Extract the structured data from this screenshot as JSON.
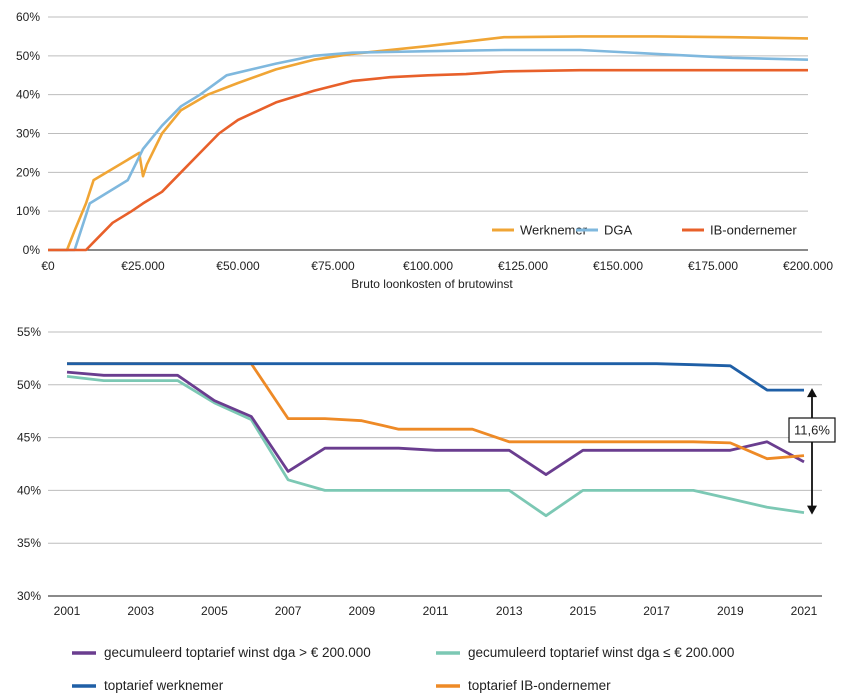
{
  "chart_data": [
    {
      "type": "line",
      "xlabel": "Bruto loonkosten of brutowinst",
      "x_ticks": [
        "€0",
        "€25.000",
        "€50.000",
        "€75.000",
        "€100.000",
        "€125.000",
        "€150.000",
        "€175.000",
        "€200.000"
      ],
      "y_ticks": [
        "0%",
        "10%",
        "20%",
        "30%",
        "40%",
        "50%",
        "60%"
      ],
      "xlim": [
        0,
        200000
      ],
      "ylim": [
        0,
        60
      ],
      "grid": "horizontal",
      "legend": "bottom-right",
      "series": [
        {
          "name": "Werknemer",
          "color": "#f0a535",
          "x": [
            0,
            5000,
            7000,
            10000,
            12000,
            24000,
            25000,
            26000,
            30000,
            35000,
            42000,
            50000,
            60000,
            70000,
            80000,
            100000,
            120000,
            140000,
            160000,
            180000,
            200000
          ],
          "y": [
            0,
            0,
            5,
            12,
            18,
            25,
            19,
            22,
            30,
            36,
            40,
            43,
            46.5,
            49,
            50.5,
            52.5,
            54.8,
            55,
            55,
            54.8,
            54.5
          ]
        },
        {
          "name": "DGA",
          "color": "#7fb8de",
          "x": [
            0,
            7000,
            9000,
            11000,
            21000,
            25000,
            30000,
            35000,
            40000,
            47000,
            60000,
            70000,
            80000,
            100000,
            120000,
            140000,
            160000,
            180000,
            200000
          ],
          "y": [
            0,
            0,
            6,
            12,
            18,
            26,
            32,
            37,
            40,
            45,
            48,
            50,
            50.8,
            51.2,
            51.5,
            51.5,
            50.5,
            49.5,
            49
          ]
        },
        {
          "name": "IB-ondernemer",
          "color": "#e8602a",
          "x": [
            0,
            10000,
            13000,
            17000,
            22000,
            25000,
            30000,
            35000,
            40000,
            45000,
            50000,
            60000,
            70000,
            80000,
            90000,
            100000,
            110000,
            120000,
            140000,
            160000,
            180000,
            200000
          ],
          "y": [
            0,
            0,
            3,
            7,
            10,
            12,
            15,
            20,
            25,
            30,
            33.5,
            38,
            41,
            43.5,
            44.5,
            45,
            45.3,
            46,
            46.3,
            46.3,
            46.3,
            46.3
          ]
        }
      ]
    },
    {
      "type": "line",
      "x_ticks": [
        "2001",
        "2003",
        "2005",
        "2007",
        "2009",
        "2011",
        "2013",
        "2015",
        "2017",
        "2019",
        "2021"
      ],
      "y_ticks": [
        "30%",
        "35%",
        "40%",
        "45%",
        "50%",
        "55%"
      ],
      "xlim": [
        2001,
        2021
      ],
      "ylim": [
        30,
        55
      ],
      "grid": "horizontal",
      "legend": "bottom",
      "annotation": {
        "label": "11,6%",
        "x": 2021,
        "from": 49.5,
        "to": 37.9
      },
      "series": [
        {
          "name": "gecumuleerd toptarief winst dga > € 200.000",
          "color": "#6a3d8f",
          "x": [
            2001,
            2002,
            2003,
            2004,
            2005,
            2006,
            2007,
            2008,
            2009,
            2010,
            2011,
            2012,
            2013,
            2014,
            2015,
            2016,
            2017,
            2018,
            2019,
            2020,
            2021
          ],
          "y": [
            51.2,
            50.9,
            50.9,
            50.9,
            48.5,
            47.0,
            41.8,
            44.0,
            44.0,
            44.0,
            43.8,
            43.8,
            43.8,
            41.5,
            43.8,
            43.8,
            43.8,
            43.8,
            43.8,
            44.6,
            42.7
          ]
        },
        {
          "name": "gecumuleerd toptarief winst dga ≤ € 200.000",
          "color": "#7cc8b4",
          "x": [
            2001,
            2002,
            2003,
            2004,
            2005,
            2006,
            2007,
            2008,
            2009,
            2010,
            2011,
            2012,
            2013,
            2014,
            2015,
            2016,
            2017,
            2018,
            2019,
            2020,
            2021
          ],
          "y": [
            50.8,
            50.4,
            50.4,
            50.4,
            48.3,
            46.7,
            41.0,
            40.0,
            40.0,
            40.0,
            40.0,
            40.0,
            40.0,
            37.6,
            40.0,
            40.0,
            40.0,
            40.0,
            39.2,
            38.4,
            37.9
          ]
        },
        {
          "name": "toptarief werknemer",
          "color": "#1f5fa6",
          "x": [
            2001,
            2002,
            2003,
            2004,
            2005,
            2006,
            2007,
            2008,
            2009,
            2010,
            2011,
            2012,
            2013,
            2014,
            2015,
            2016,
            2017,
            2018,
            2019,
            2020,
            2021
          ],
          "y": [
            52,
            52,
            52,
            52,
            52,
            52,
            52,
            52,
            52,
            52,
            52,
            52,
            52,
            52,
            52,
            52,
            52,
            51.9,
            51.8,
            49.5,
            49.5
          ]
        },
        {
          "name": "toptarief IB-ondernemer",
          "color": "#ee8a26",
          "x": [
            2001,
            2002,
            2003,
            2004,
            2005,
            2006,
            2007,
            2008,
            2009,
            2010,
            2011,
            2012,
            2013,
            2014,
            2015,
            2016,
            2017,
            2018,
            2019,
            2020,
            2021
          ],
          "y": [
            52,
            52,
            52,
            52,
            52,
            52,
            46.8,
            46.8,
            46.6,
            45.8,
            45.8,
            45.8,
            44.6,
            44.6,
            44.6,
            44.6,
            44.6,
            44.6,
            44.5,
            43.0,
            43.3
          ]
        }
      ]
    }
  ]
}
